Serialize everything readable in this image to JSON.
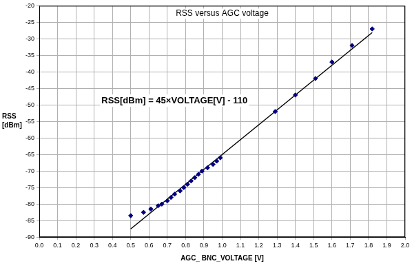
{
  "chart_data": {
    "type": "scatter",
    "title": "RSS versus AGC voltage",
    "x_label": "AGC_ BNC_VOLTAGE [V]",
    "y_label": "RSS [dBm]",
    "annotation": "RSS[dBm] = 45×VOLTAGE[V] - 110",
    "xlim": [
      0,
      2.0
    ],
    "xticks": [
      {
        "value": 0,
        "label": "0.0"
      },
      0.1,
      0.2,
      0.3,
      0.4,
      0.5,
      0.6,
      0.7,
      0.8,
      0.9,
      {
        "value": 1,
        "label": "1.0"
      },
      1.1,
      1.2,
      1.3,
      1.4,
      1.5,
      1.6,
      1.7,
      1.8,
      1.9,
      {
        "value": 2,
        "label": "2.0"
      }
    ],
    "ylim": [
      -90,
      -20
    ],
    "yticks": [
      -90,
      -85,
      -80,
      -75,
      -70,
      -65,
      -60,
      -55,
      -50,
      -45,
      -40,
      -35,
      -30,
      -25,
      -20
    ],
    "grid": true,
    "series": [
      {
        "type": "scatter",
        "marker": "diamond",
        "color": "#000080",
        "x": [
          0.5,
          0.57,
          0.61,
          0.65,
          0.67,
          0.7,
          0.72,
          0.74,
          0.77,
          0.79,
          0.81,
          0.83,
          0.85,
          0.87,
          0.89,
          0.92,
          0.95,
          0.97,
          0.99,
          1.29,
          1.4,
          1.51,
          1.6,
          1.71,
          1.82
        ],
        "values": [
          -83.5,
          -82.5,
          -81.5,
          -80.5,
          -80,
          -79,
          -78,
          -77,
          -76,
          -75,
          -74,
          -73,
          -72,
          -71,
          -70,
          -69,
          -68,
          -67,
          -66,
          -52,
          -47,
          -42,
          -37,
          -32,
          -27
        ]
      },
      {
        "type": "line",
        "line_style": "solid",
        "color": "#000000",
        "x": [
          0.5,
          1.82
        ],
        "values": [
          -87.5,
          -28.1
        ]
      }
    ]
  }
}
